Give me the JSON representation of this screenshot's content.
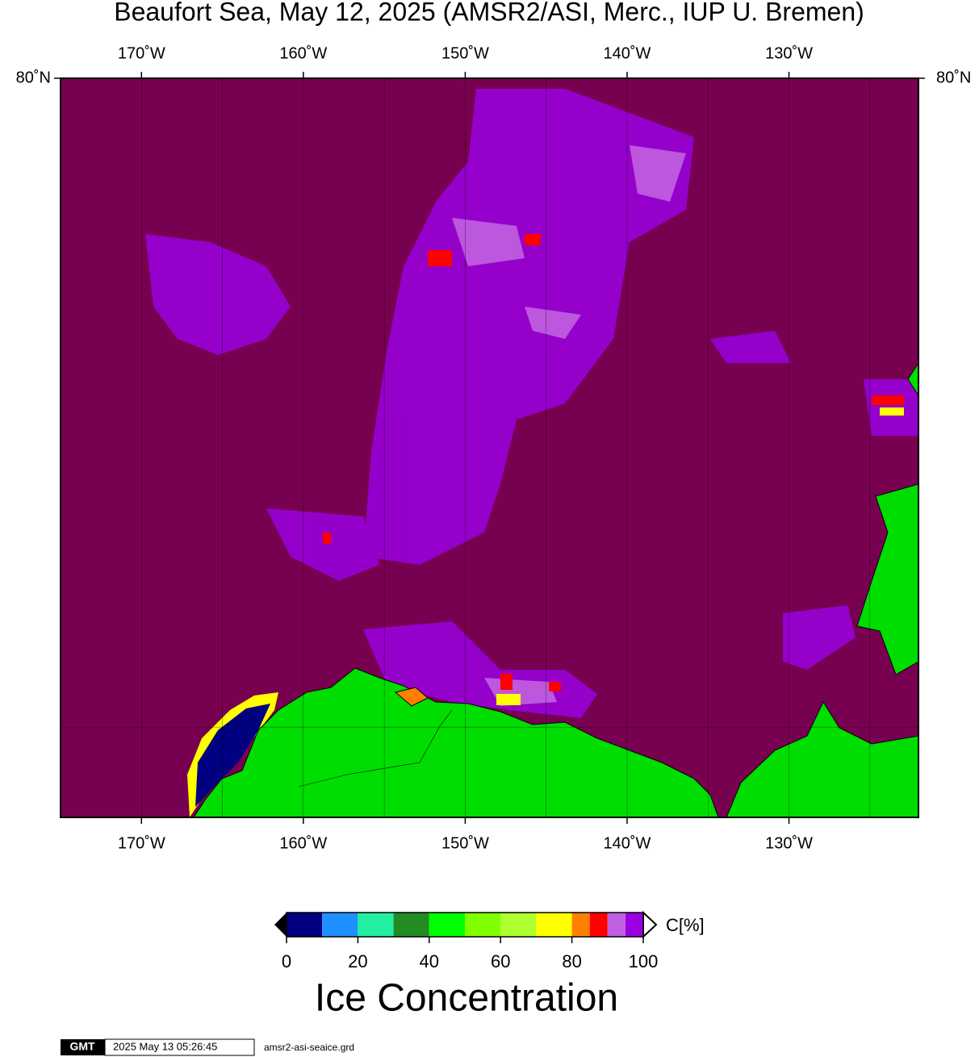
{
  "title": "Beaufort Sea, May 12, 2025 (AMSR2/ASI, Merc., IUP U. Bremen)",
  "map": {
    "lonlim": [
      -175,
      -122
    ],
    "latlim": [
      68,
      80
    ],
    "lon_ticks": [
      {
        "value": -170,
        "label": "170˚W"
      },
      {
        "value": -160,
        "label": "160˚W"
      },
      {
        "value": -150,
        "label": "150˚W"
      },
      {
        "value": -140,
        "label": "140˚W"
      },
      {
        "value": -130,
        "label": "130˚W"
      }
    ],
    "lat_ticks": [
      {
        "value": 80,
        "label": "80˚N"
      }
    ],
    "lon_gridlines": [
      -170,
      -165,
      -160,
      -155,
      -150,
      -145,
      -140,
      -135,
      -130,
      -125
    ],
    "lat_gridlines": [
      70
    ]
  },
  "colorbar": {
    "bounds": [
      0,
      10,
      20,
      30,
      40,
      50,
      60,
      70,
      80,
      85,
      90,
      95,
      100
    ],
    "colors": [
      "#000080",
      "#1e90ff",
      "#20f0a0",
      "#228b22",
      "#00ff00",
      "#7fff00",
      "#adff2f",
      "#ffff00",
      "#ff8000",
      "#ff0000",
      "#c060e0",
      "#9a00e0"
    ],
    "ticks": [
      0,
      20,
      40,
      60,
      80,
      100
    ],
    "unit_label": "C[%]",
    "title": "Ice Concentration"
  },
  "footer": {
    "logo": "GMT",
    "timestamp": "2025 May 13 05:26:45",
    "file": "amsr2-asi-seaice.grd"
  }
}
